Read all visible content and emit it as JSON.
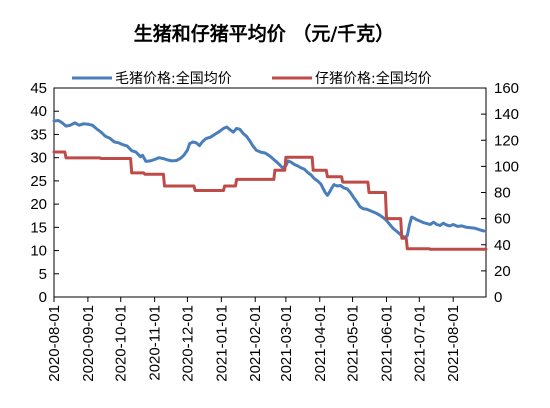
{
  "chart_data": {
    "type": "line",
    "title": "生猪和仔猪平均价 （元/千克）",
    "xlabel": "",
    "ylabel": "",
    "ylim_left": [
      0,
      45
    ],
    "yticks_left": [
      0,
      5,
      10,
      15,
      20,
      25,
      30,
      35,
      40,
      45
    ],
    "ylim_right": [
      0,
      160
    ],
    "yticks_right": [
      0,
      20,
      40,
      60,
      80,
      100,
      120,
      140,
      160
    ],
    "xlim": [
      "2020-08-01",
      "2021-08-31"
    ],
    "x_ticks": [
      "2020-08-01",
      "2020-09-01",
      "2020-10-01",
      "2020-11-01",
      "2020-12-01",
      "2021-01-01",
      "2021-02-01",
      "2021-03-01",
      "2021-04-01",
      "2021-05-01",
      "2021-06-01",
      "2021-07-01",
      "2021-08-01"
    ],
    "grid": false,
    "legend": "top",
    "series": [
      {
        "name": "毛猪价格:全国均价",
        "axis": "left",
        "color": "#4a7ebb",
        "points": [
          [
            "2020-08-01",
            37.9
          ],
          [
            "2020-08-05",
            38.0
          ],
          [
            "2020-08-08",
            37.6
          ],
          [
            "2020-08-12",
            36.8
          ],
          [
            "2020-08-16",
            37.0
          ],
          [
            "2020-08-20",
            37.5
          ],
          [
            "2020-08-24",
            37.0
          ],
          [
            "2020-08-28",
            37.3
          ],
          [
            "2020-09-01",
            37.2
          ],
          [
            "2020-09-05",
            37.0
          ],
          [
            "2020-09-09",
            36.2
          ],
          [
            "2020-09-13",
            35.5
          ],
          [
            "2020-09-17",
            34.6
          ],
          [
            "2020-09-21",
            34.2
          ],
          [
            "2020-09-25",
            33.4
          ],
          [
            "2020-09-29",
            33.2
          ],
          [
            "2020-10-03",
            32.8
          ],
          [
            "2020-10-07",
            32.5
          ],
          [
            "2020-10-11",
            31.5
          ],
          [
            "2020-10-15",
            31.2
          ],
          [
            "2020-10-19",
            30.2
          ],
          [
            "2020-10-21",
            30.5
          ],
          [
            "2020-10-24",
            29.2
          ],
          [
            "2020-10-28",
            29.3
          ],
          [
            "2020-11-01",
            29.6
          ],
          [
            "2020-11-05",
            30.0
          ],
          [
            "2020-11-09",
            29.8
          ],
          [
            "2020-11-13",
            29.5
          ],
          [
            "2020-11-17",
            29.3
          ],
          [
            "2020-11-21",
            29.4
          ],
          [
            "2020-11-25",
            29.9
          ],
          [
            "2020-11-28",
            30.6
          ],
          [
            "2020-12-01",
            31.6
          ],
          [
            "2020-12-03",
            33.0
          ],
          [
            "2020-12-06",
            33.4
          ],
          [
            "2020-12-09",
            33.2
          ],
          [
            "2020-12-12",
            32.6
          ],
          [
            "2020-12-15",
            33.5
          ],
          [
            "2020-12-18",
            34.1
          ],
          [
            "2020-12-22",
            34.4
          ],
          [
            "2020-12-26",
            35.0
          ],
          [
            "2020-12-30",
            35.6
          ],
          [
            "2021-01-03",
            36.3
          ],
          [
            "2021-01-06",
            36.6
          ],
          [
            "2021-01-09",
            36.0
          ],
          [
            "2021-01-12",
            35.5
          ],
          [
            "2021-01-15",
            36.3
          ],
          [
            "2021-01-18",
            36.1
          ],
          [
            "2021-01-21",
            35.2
          ],
          [
            "2021-01-24",
            34.6
          ],
          [
            "2021-01-27",
            33.6
          ],
          [
            "2021-01-30",
            32.5
          ],
          [
            "2021-02-02",
            31.6
          ],
          [
            "2021-02-06",
            31.2
          ],
          [
            "2021-02-10",
            31.0
          ],
          [
            "2021-02-14",
            30.4
          ],
          [
            "2021-02-18",
            29.6
          ],
          [
            "2021-02-21",
            29.0
          ],
          [
            "2021-02-24",
            28.3
          ],
          [
            "2021-02-26",
            27.8
          ],
          [
            "2021-03-01",
            28.3
          ],
          [
            "2021-03-03",
            29.3
          ],
          [
            "2021-03-06",
            29.0
          ],
          [
            "2021-03-09",
            28.5
          ],
          [
            "2021-03-12",
            28.2
          ],
          [
            "2021-03-15",
            27.8
          ],
          [
            "2021-03-18",
            27.5
          ],
          [
            "2021-03-21",
            26.8
          ],
          [
            "2021-03-24",
            26.3
          ],
          [
            "2021-03-27",
            25.5
          ],
          [
            "2021-03-30",
            25.0
          ],
          [
            "2021-04-02",
            24.3
          ],
          [
            "2021-04-04",
            23.4
          ],
          [
            "2021-04-06",
            22.5
          ],
          [
            "2021-04-08",
            21.9
          ],
          [
            "2021-04-10",
            22.6
          ],
          [
            "2021-04-12",
            23.5
          ],
          [
            "2021-04-14",
            24.2
          ],
          [
            "2021-04-17",
            23.9
          ],
          [
            "2021-04-20",
            24.0
          ],
          [
            "2021-04-23",
            23.5
          ],
          [
            "2021-04-26",
            23.3
          ],
          [
            "2021-04-29",
            22.5
          ],
          [
            "2021-05-02",
            21.4
          ],
          [
            "2021-05-05",
            20.5
          ],
          [
            "2021-05-08",
            19.4
          ],
          [
            "2021-05-11",
            19.0
          ],
          [
            "2021-05-14",
            18.9
          ],
          [
            "2021-05-17",
            18.6
          ],
          [
            "2021-05-20",
            18.3
          ],
          [
            "2021-05-23",
            18.0
          ],
          [
            "2021-05-26",
            17.6
          ],
          [
            "2021-05-29",
            17.1
          ],
          [
            "2021-06-01",
            16.5
          ],
          [
            "2021-06-04",
            15.6
          ],
          [
            "2021-06-07",
            14.8
          ],
          [
            "2021-06-10",
            14.2
          ],
          [
            "2021-06-13",
            13.6
          ],
          [
            "2021-06-16",
            13.0
          ],
          [
            "2021-06-18",
            12.9
          ],
          [
            "2021-06-20",
            13.2
          ],
          [
            "2021-06-22",
            15.5
          ],
          [
            "2021-06-24",
            17.2
          ],
          [
            "2021-06-26",
            17.0
          ],
          [
            "2021-06-29",
            16.6
          ],
          [
            "2021-07-02",
            16.3
          ],
          [
            "2021-07-05",
            16.0
          ],
          [
            "2021-07-08",
            15.8
          ],
          [
            "2021-07-11",
            15.6
          ],
          [
            "2021-07-14",
            16.1
          ],
          [
            "2021-07-17",
            15.6
          ],
          [
            "2021-07-20",
            15.4
          ],
          [
            "2021-07-23",
            15.9
          ],
          [
            "2021-07-26",
            15.5
          ],
          [
            "2021-07-29",
            15.3
          ],
          [
            "2021-08-01",
            15.6
          ],
          [
            "2021-08-05",
            15.2
          ],
          [
            "2021-08-09",
            15.3
          ],
          [
            "2021-08-13",
            15.0
          ],
          [
            "2021-08-17",
            14.9
          ],
          [
            "2021-08-21",
            14.8
          ],
          [
            "2021-08-25",
            14.5
          ],
          [
            "2021-08-29",
            14.2
          ]
        ]
      },
      {
        "name": "仔猪价格:全国均价",
        "axis": "right",
        "color": "#be4b48",
        "points": [
          [
            "2020-08-01",
            111
          ],
          [
            "2020-08-11",
            111
          ],
          [
            "2020-08-12",
            106.5
          ],
          [
            "2020-09-12",
            106.5
          ],
          [
            "2020-09-13",
            106
          ],
          [
            "2020-10-10",
            106
          ],
          [
            "2020-10-11",
            95
          ],
          [
            "2020-10-22",
            95
          ],
          [
            "2020-10-23",
            94
          ],
          [
            "2020-11-09",
            94
          ],
          [
            "2020-11-10",
            85
          ],
          [
            "2020-12-07",
            85
          ],
          [
            "2020-12-08",
            81.5
          ],
          [
            "2021-01-03",
            81.5
          ],
          [
            "2021-01-04",
            85
          ],
          [
            "2021-01-14",
            85
          ],
          [
            "2021-01-15",
            90
          ],
          [
            "2021-02-18",
            90
          ],
          [
            "2021-02-19",
            97
          ],
          [
            "2021-02-28",
            97
          ],
          [
            "2021-03-01",
            107
          ],
          [
            "2021-03-25",
            107
          ],
          [
            "2021-03-26",
            97
          ],
          [
            "2021-04-07",
            97
          ],
          [
            "2021-04-08",
            92
          ],
          [
            "2021-04-21",
            92
          ],
          [
            "2021-04-22",
            88
          ],
          [
            "2021-05-15",
            88
          ],
          [
            "2021-05-16",
            80
          ],
          [
            "2021-05-31",
            80
          ],
          [
            "2021-06-01",
            60
          ],
          [
            "2021-06-14",
            60
          ],
          [
            "2021-06-15",
            45
          ],
          [
            "2021-06-19",
            45
          ],
          [
            "2021-06-20",
            37
          ],
          [
            "2021-07-10",
            37
          ],
          [
            "2021-07-11",
            36.5
          ],
          [
            "2021-08-31",
            36.5
          ]
        ]
      }
    ]
  }
}
